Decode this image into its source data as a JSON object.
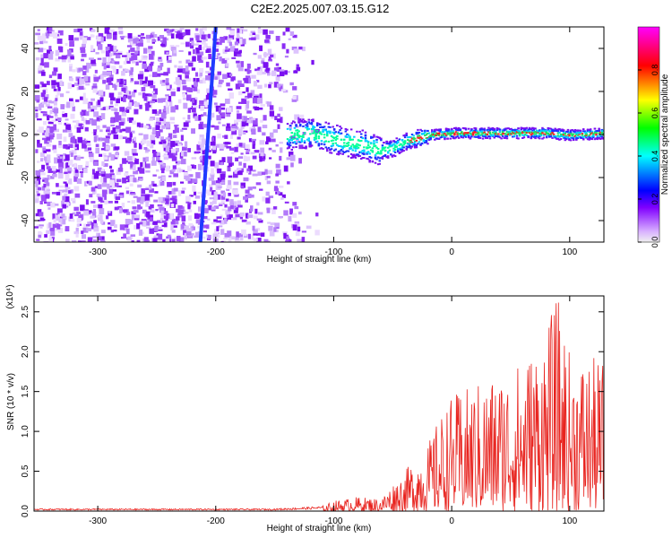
{
  "figure": {
    "title": "C2E2.2025.007.03.15.G12"
  },
  "chart_data": [
    {
      "type": "heatmap",
      "xlabel": "Height of straight line (km)",
      "ylabel": "Frequency (Hz)",
      "xlim": [
        -354,
        129
      ],
      "ylim": [
        -50,
        50
      ],
      "xticks": [
        -300,
        -200,
        -100,
        0,
        100
      ],
      "yticks": [
        -40,
        -20,
        0,
        20,
        40
      ],
      "grid": false,
      "colorbar": {
        "label": "Normalized spectral amplitude",
        "range": [
          0.0,
          1.0
        ],
        "ticks": [
          0.0,
          0.2,
          0.4,
          0.6,
          0.8
        ],
        "tick_labels": [
          "0.0",
          "0.2",
          "0.4",
          "0.6",
          "0.8"
        ],
        "colormap": [
          "#f0f0f0",
          "#8000ff",
          "#0000ff",
          "#00ffff",
          "#00ff00",
          "#ffff00",
          "#ff0000",
          "#ff00ff"
        ]
      },
      "features": {
        "noise_region_x": [
          -354,
          -130
        ],
        "diagonal_line": {
          "x_at_ylow": -213,
          "x_at_yhigh": -200,
          "ylow": -50,
          "yhigh": 50,
          "color": "#1f3bff"
        },
        "ridge": {
          "x": [
            -140,
            -120,
            -100,
            -80,
            -60,
            -50,
            -40,
            -20,
            0,
            40,
            80,
            100,
            129
          ],
          "frequency": [
            0,
            1,
            -2,
            -4,
            -7,
            -6,
            -3,
            0,
            1,
            1,
            1,
            0,
            1
          ]
        }
      }
    },
    {
      "type": "line",
      "xlabel": "Height of straight line (km)",
      "ylabel": "SNR (10 * v/v)",
      "scale_label": "(x10⁴)",
      "xlim": [
        -354,
        129
      ],
      "ylim": [
        0,
        2.7
      ],
      "xticks": [
        -300,
        -200,
        -100,
        0,
        100
      ],
      "yticks": [
        0.0,
        0.5,
        1.0,
        1.5,
        2.0,
        2.5
      ],
      "ytick_labels": [
        "0.0",
        "0.5",
        "1.0",
        "1.5",
        "2.0",
        "2.5"
      ],
      "grid": false,
      "color": "#e8231e",
      "envelope": {
        "x": [
          -354,
          -150,
          -110,
          -100,
          -80,
          -60,
          -50,
          -40,
          -30,
          -20,
          -10,
          0,
          20,
          40,
          60,
          80,
          90,
          100,
          110,
          129
        ],
        "max": [
          0.03,
          0.03,
          0.06,
          0.13,
          0.18,
          0.16,
          0.35,
          0.5,
          0.7,
          0.85,
          1.2,
          1.45,
          1.6,
          1.75,
          1.9,
          2.3,
          2.7,
          2.0,
          1.95,
          1.9
        ]
      }
    }
  ]
}
